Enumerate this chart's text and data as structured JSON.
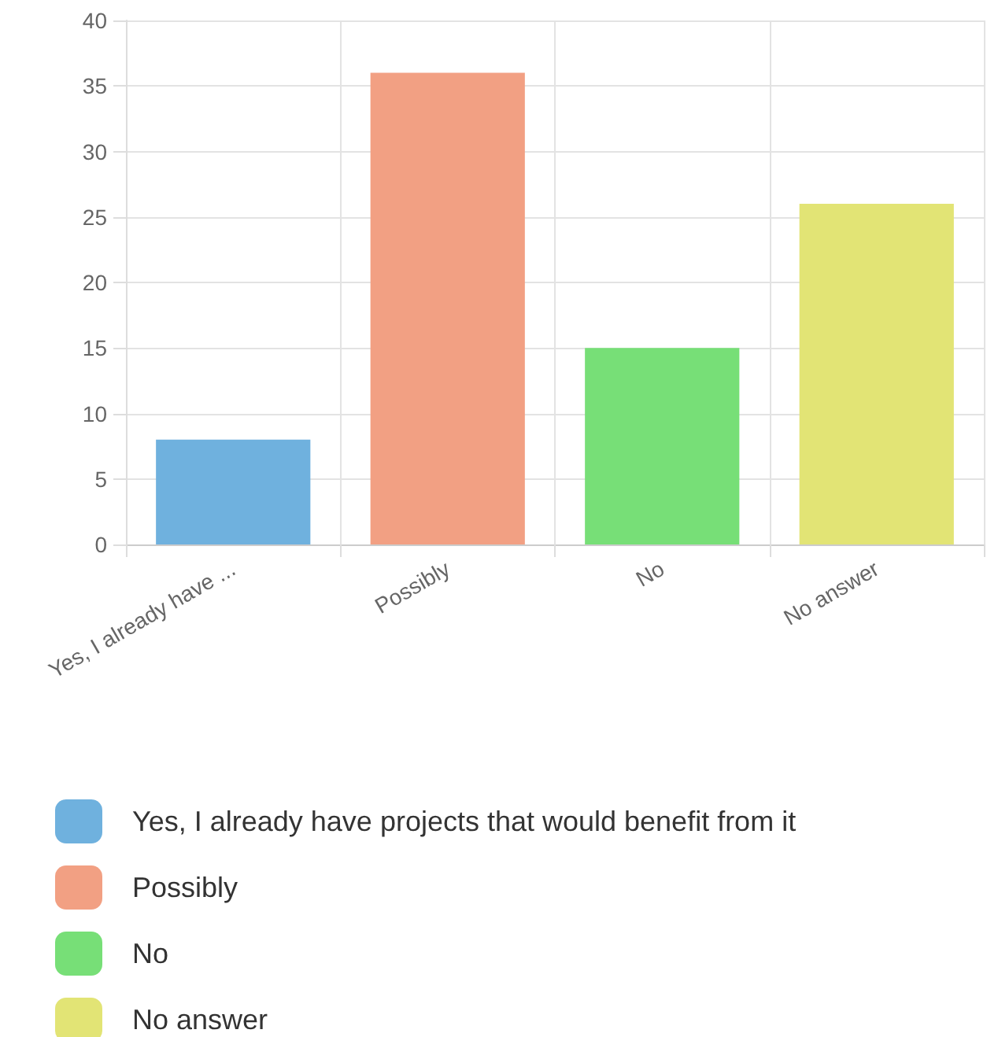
{
  "chart_data": {
    "type": "bar",
    "categories": [
      "Yes, I already have ...",
      "Possibly",
      "No",
      "No answer"
    ],
    "series": [
      {
        "name": "Yes, I already have projects that would benefit from it",
        "color": "#6fb1de",
        "values": [
          8,
          null,
          null,
          null
        ]
      },
      {
        "name": "Possibly",
        "color": "#f2a083",
        "values": [
          null,
          36,
          null,
          null
        ]
      },
      {
        "name": "No",
        "color": "#77df77",
        "values": [
          null,
          null,
          15,
          null
        ]
      },
      {
        "name": "No answer",
        "color": "#e2e475",
        "values": [
          null,
          null,
          null,
          26
        ]
      }
    ],
    "ylim": [
      0,
      40
    ],
    "yticks": [
      0,
      5,
      10,
      15,
      20,
      25,
      30,
      35,
      40
    ],
    "grid": true,
    "legend": "bottom"
  }
}
